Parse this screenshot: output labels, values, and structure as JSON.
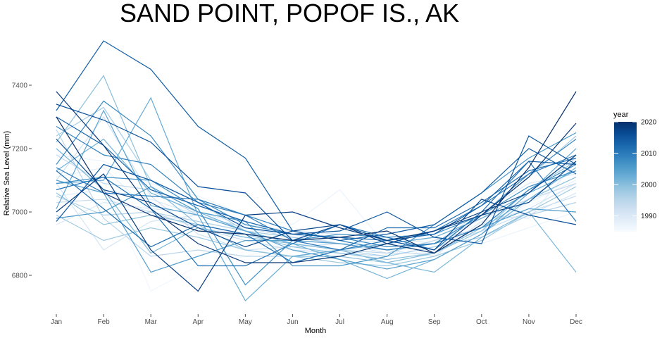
{
  "chart_data": {
    "type": "line",
    "title": "SAND POINT, POPOF IS., AK",
    "xlabel": "Month",
    "ylabel": "Relative Sea Level (mm)",
    "categories": [
      "Jan",
      "Feb",
      "Mar",
      "Apr",
      "May",
      "Jun",
      "Jul",
      "Aug",
      "Sep",
      "Oct",
      "Nov",
      "Dec"
    ],
    "ylim": [
      6690,
      7560
    ],
    "yticks": [
      6800,
      7000,
      7200,
      7400
    ],
    "grid": false,
    "legend": {
      "title": "year",
      "position": "right",
      "type": "colorbar",
      "range": [
        1985,
        2020
      ],
      "ticks": [
        1990,
        2000,
        2010,
        2020
      ],
      "color_low": "#f7fbff",
      "color_high": "#08306b"
    },
    "series": [
      {
        "year": 1985,
        "values": [
          7000,
          7040,
          7020,
          6990,
          6970,
          6950,
          6940,
          6930,
          6950,
          6980,
          7010,
          7030
        ]
      },
      {
        "year": 1986,
        "values": [
          7130,
          7100,
          6750,
          6830,
          6860,
          6900,
          6920,
          6900,
          6930,
          6960,
          7020,
          7080
        ]
      },
      {
        "year": 1987,
        "values": [
          7180,
          7160,
          7090,
          7050,
          6990,
          6960,
          7070,
          6890,
          6920,
          6900,
          6950,
          7000
        ]
      },
      {
        "year": 1988,
        "values": [
          7110,
          7140,
          7000,
          6950,
          6930,
          6910,
          6900,
          6880,
          6900,
          6940,
          7030,
          7100
        ]
      },
      {
        "year": 1989,
        "values": [
          7050,
          7070,
          7040,
          6990,
          6940,
          6920,
          6900,
          6910,
          6930,
          6990,
          6980,
          7160
        ]
      },
      {
        "year": 1990,
        "values": [
          6960,
          7030,
          7010,
          7000,
          6960,
          6940,
          6930,
          6920,
          6900,
          7000,
          7090,
          7120
        ]
      },
      {
        "year": 1991,
        "values": [
          7090,
          6880,
          6970,
          6990,
          6950,
          6930,
          6900,
          6880,
          6860,
          6970,
          6990,
          7060
        ]
      },
      {
        "year": 1992,
        "values": [
          7100,
          7300,
          7050,
          6930,
          6880,
          6890,
          6900,
          6870,
          6870,
          6960,
          7010,
          7090
        ]
      },
      {
        "year": 1993,
        "values": [
          7030,
          7040,
          7000,
          6950,
          6910,
          6880,
          6870,
          6860,
          6890,
          6940,
          7000,
          7050
        ]
      },
      {
        "year": 1994,
        "values": [
          7180,
          7090,
          7070,
          6990,
          6950,
          6920,
          6900,
          6880,
          6900,
          6980,
          7040,
          7090
        ]
      },
      {
        "year": 1995,
        "values": [
          7260,
          6980,
          6860,
          6880,
          6860,
          6860,
          6880,
          6870,
          6910,
          6950,
          7070,
          7170
        ]
      },
      {
        "year": 1996,
        "values": [
          7050,
          6990,
          7000,
          6970,
          6940,
          6900,
          6880,
          6860,
          6890,
          6920,
          6990,
          7030
        ]
      },
      {
        "year": 1997,
        "values": [
          7240,
          7330,
          7100,
          7030,
          6940,
          6920,
          6900,
          6880,
          6900,
          6990,
          7110,
          7240
        ]
      },
      {
        "year": 1998,
        "values": [
          6990,
          6910,
          6950,
          6920,
          6880,
          6860,
          6840,
          6830,
          6860,
          6910,
          7000,
          7080
        ]
      },
      {
        "year": 1999,
        "values": [
          7060,
          6960,
          6990,
          6960,
          6930,
          6890,
          6870,
          6850,
          6870,
          6940,
          7070,
          7160
        ]
      },
      {
        "year": 2000,
        "values": [
          7220,
          7430,
          7080,
          6960,
          6880,
          6860,
          6860,
          6840,
          6870,
          6950,
          7040,
          7110
        ]
      },
      {
        "year": 2001,
        "values": [
          7200,
          7070,
          6870,
          6950,
          6920,
          6900,
          6880,
          6840,
          6810,
          6920,
          7000,
          6810
        ]
      },
      {
        "year": 2002,
        "values": [
          7130,
          7230,
          7060,
          7000,
          6940,
          6900,
          6850,
          6790,
          6850,
          6930,
          7040,
          7140
        ]
      },
      {
        "year": 2003,
        "values": [
          7090,
          7100,
          7360,
          6990,
          6720,
          6860,
          6880,
          6900,
          6920,
          6980,
          7060,
          7130
        ]
      },
      {
        "year": 2004,
        "values": [
          7010,
          7320,
          7020,
          6990,
          6940,
          6880,
          6850,
          6820,
          6850,
          6930,
          7060,
          7200
        ]
      },
      {
        "year": 2005,
        "values": [
          7100,
          7060,
          6810,
          6860,
          6910,
          6910,
          6900,
          6880,
          6900,
          6950,
          7010,
          7000
        ]
      },
      {
        "year": 2006,
        "values": [
          6980,
          7000,
          7080,
          7000,
          6970,
          6830,
          6830,
          6860,
          6960,
          7060,
          7170,
          7250
        ]
      },
      {
        "year": 2007,
        "values": [
          7090,
          7110,
          7100,
          7010,
          6770,
          6910,
          6930,
          6920,
          6930,
          6990,
          7080,
          7130
        ]
      },
      {
        "year": 2008,
        "values": [
          7150,
          7350,
          7240,
          7040,
          6960,
          6930,
          6920,
          6890,
          6900,
          6990,
          7120,
          7230
        ]
      },
      {
        "year": 2009,
        "values": [
          7270,
          7180,
          7150,
          7030,
          6990,
          6940,
          6910,
          6880,
          6900,
          6950,
          7070,
          7150
        ]
      },
      {
        "year": 2010,
        "values": [
          7140,
          7060,
          7050,
          7040,
          6990,
          6910,
          6880,
          6910,
          6940,
          7020,
          7120,
          7180
        ]
      },
      {
        "year": 2011,
        "values": [
          7070,
          7110,
          7010,
          6830,
          6830,
          6900,
          6960,
          6920,
          6880,
          7000,
          7160,
          6970
        ]
      },
      {
        "year": 2012,
        "values": [
          7130,
          7010,
          6890,
          6960,
          6930,
          6840,
          6880,
          6950,
          6950,
          7030,
          7130,
          7170
        ]
      },
      {
        "year": 2013,
        "values": [
          7300,
          7210,
          7070,
          7020,
          6970,
          6930,
          6920,
          6910,
          6930,
          7020,
          7160,
          7150
        ]
      },
      {
        "year": 2014,
        "values": [
          7320,
          7540,
          7450,
          7270,
          7170,
          6940,
          6910,
          6930,
          6960,
          7060,
          7200,
          7120
        ]
      },
      {
        "year": 2015,
        "values": [
          6970,
          7150,
          7100,
          7030,
          6950,
          6930,
          6940,
          7000,
          6920,
          6900,
          7240,
          7150
        ]
      },
      {
        "year": 2016,
        "values": [
          7340,
          7290,
          7220,
          7080,
          7060,
          6910,
          6960,
          6910,
          6880,
          7040,
          6990,
          6960
        ]
      },
      {
        "year": 2017,
        "values": [
          7230,
          7070,
          7030,
          6950,
          6890,
          6940,
          6960,
          6900,
          6940,
          6990,
          7030,
          7160
        ]
      },
      {
        "year": 2018,
        "values": [
          7000,
          7120,
          6880,
          6750,
          6990,
          7000,
          6950,
          6910,
          6940,
          7000,
          7060,
          7180
        ]
      },
      {
        "year": 2019,
        "values": [
          7380,
          7210,
          7010,
          6900,
          6840,
          6840,
          6860,
          6900,
          6870,
          6990,
          7110,
          7280
        ]
      },
      {
        "year": 2020,
        "values": [
          7300,
          7060,
          6990,
          6940,
          6930,
          6910,
          6920,
          6940,
          6870,
          6960,
          7140,
          7380
        ]
      }
    ]
  }
}
